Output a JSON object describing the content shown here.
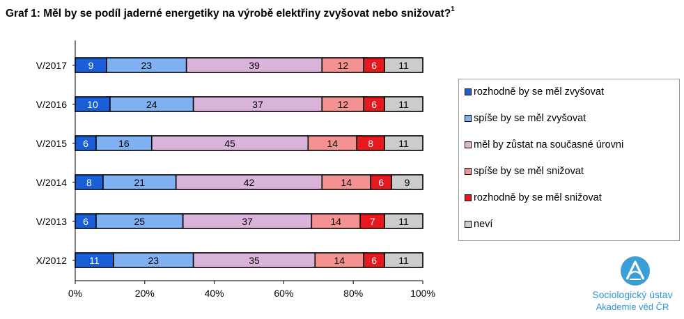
{
  "page": {
    "title": "Graf 1: Měl by se podíl jaderné energetiky na výrobě elektřiny zvyšovat nebo snižovat?",
    "title_footnote": "1"
  },
  "chart_data": {
    "type": "bar",
    "orientation": "horizontal",
    "stacked": true,
    "normalized_percent": true,
    "categories": [
      "V/2017",
      "V/2016",
      "V/2015",
      "V/2014",
      "V/2013",
      "X/2012"
    ],
    "series": [
      {
        "name": "rozhodně by se měl zvyšovat",
        "color": "#1b5fd8",
        "values": [
          9,
          10,
          6,
          8,
          6,
          11
        ]
      },
      {
        "name": "spíše by se měl zvyšovat",
        "color": "#7fb1f2",
        "values": [
          23,
          24,
          16,
          21,
          25,
          23
        ]
      },
      {
        "name": "měl by zůstat na současné úrovni",
        "color": "#d9b3d9",
        "values": [
          39,
          37,
          45,
          42,
          37,
          35
        ]
      },
      {
        "name": "spíše by se měl snižovat",
        "color": "#f49191",
        "values": [
          12,
          12,
          14,
          14,
          14,
          14
        ]
      },
      {
        "name": "rozhodně by se měl snižovat",
        "color": "#e5191e",
        "values": [
          6,
          6,
          8,
          6,
          7,
          6
        ]
      },
      {
        "name": "neví",
        "color": "#cccccc",
        "values": [
          11,
          11,
          11,
          9,
          11,
          11
        ]
      }
    ],
    "x_ticks": [
      "0%",
      "20%",
      "40%",
      "60%",
      "80%",
      "100%"
    ],
    "xlim": [
      0,
      100
    ],
    "grid": false,
    "data_labels": true,
    "legend_position": "right"
  },
  "logo": {
    "name": "Sociologický ústav",
    "subtitle": "Akademie věd ČR",
    "color": "#2f97cf"
  }
}
